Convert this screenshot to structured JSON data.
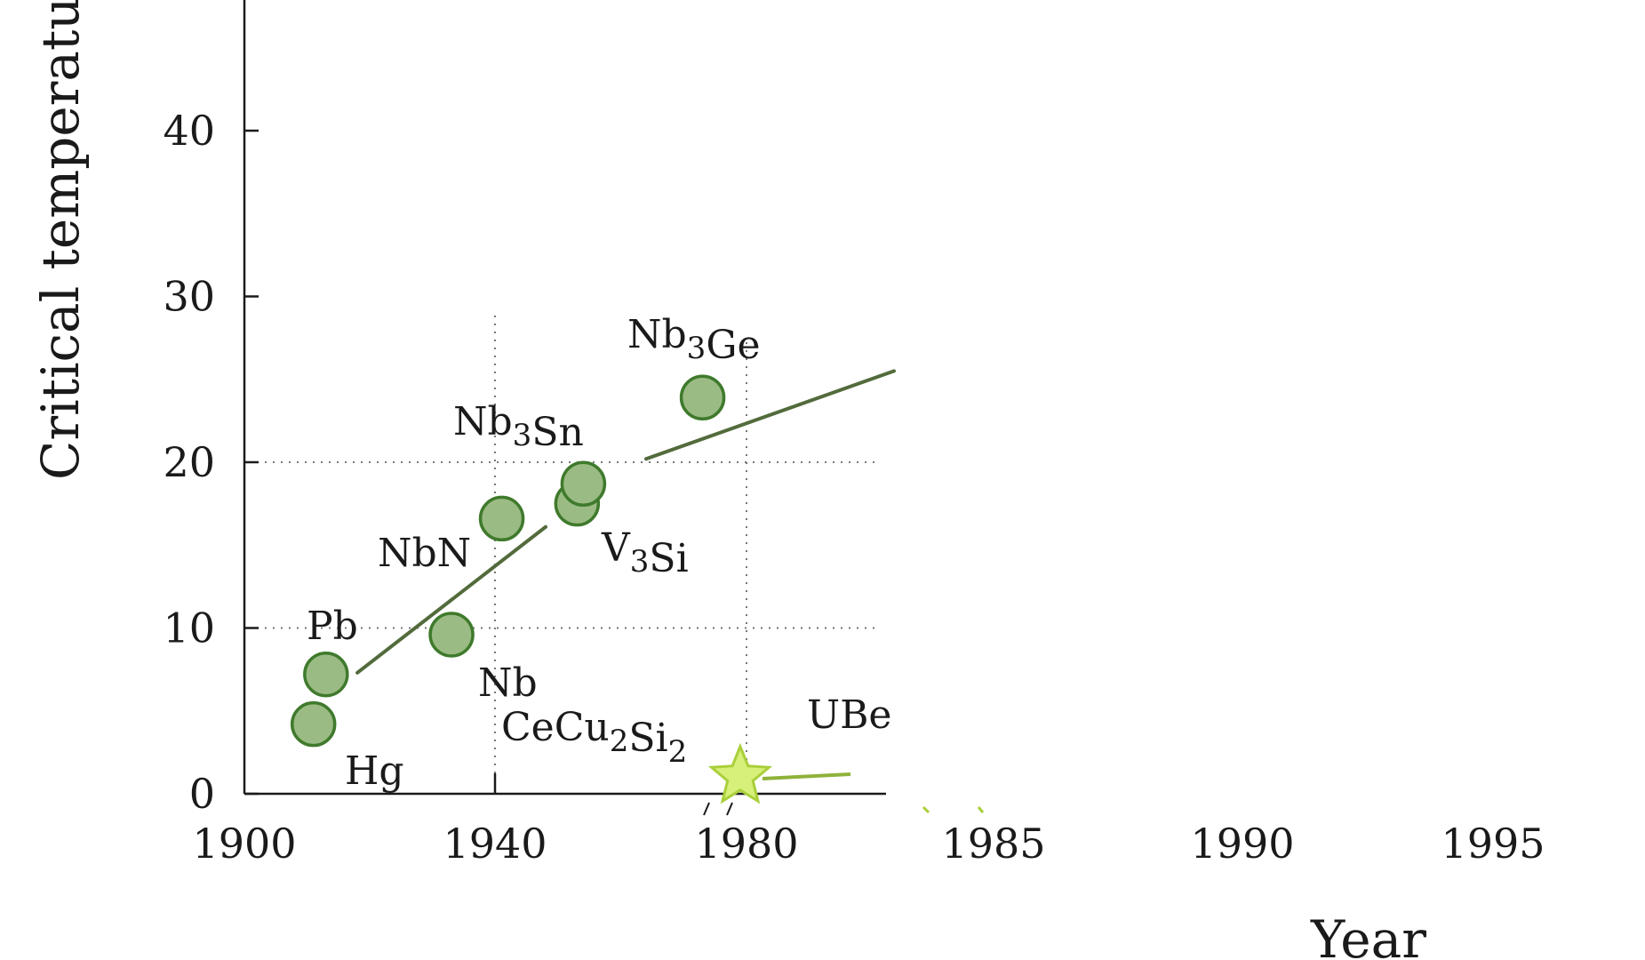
{
  "chart_data": {
    "type": "scatter",
    "title": "",
    "xlabel": "Year",
    "ylabel": "Critical temperatu",
    "x_ticks": [
      "1900",
      "1940",
      "1980",
      "1985",
      "1990",
      "1995"
    ],
    "y_ticks": [
      "0",
      "10",
      "20",
      "30",
      "40"
    ],
    "ylim": [
      0,
      48
    ],
    "grid": "dotted at 20 K and 10 K, and at years 1940 and 1980",
    "axis_break": "between 1980 and 1985",
    "series": [
      {
        "marker": "circle",
        "color": "#9bbb84",
        "points": [
          {
            "label": "Hg",
            "x": 1911,
            "y": 4.2
          },
          {
            "label": "Pb",
            "x": 1913,
            "y": 7.2
          },
          {
            "label": "Nb",
            "x": 1933,
            "y": 9.6
          },
          {
            "label": "NbN",
            "x": 1941,
            "y": 16.6
          },
          {
            "label": "V3Si",
            "x": 1953,
            "y": 17.5
          },
          {
            "label": "Nb3Sn",
            "x": 1954,
            "y": 18.7
          },
          {
            "label": "Nb3Ge",
            "x": 1973,
            "y": 23.9
          }
        ]
      },
      {
        "marker": "star",
        "color": "#d7f07a",
        "points": [
          {
            "label": "CeCu2Si2",
            "x": 1979,
            "y": 0.6
          }
        ]
      }
    ],
    "annotations": [
      "UBe"
    ],
    "trend_lines": [
      {
        "from": [
          1918,
          7.3
        ],
        "to": [
          1948,
          16.1
        ]
      },
      {
        "from": [
          1964,
          20.2
        ],
        "to": [
          1983,
          25.5
        ]
      }
    ]
  },
  "colors": {
    "axis": "#1a1a1a",
    "grid": "#777777",
    "marker_fill": "#9bbb84",
    "marker_stroke": "#3f7a2c",
    "trend_line": "#536b3c",
    "star_fill": "#d7f07a",
    "star_stroke": "#a9cf3a",
    "arrow": "#8fb23a"
  }
}
